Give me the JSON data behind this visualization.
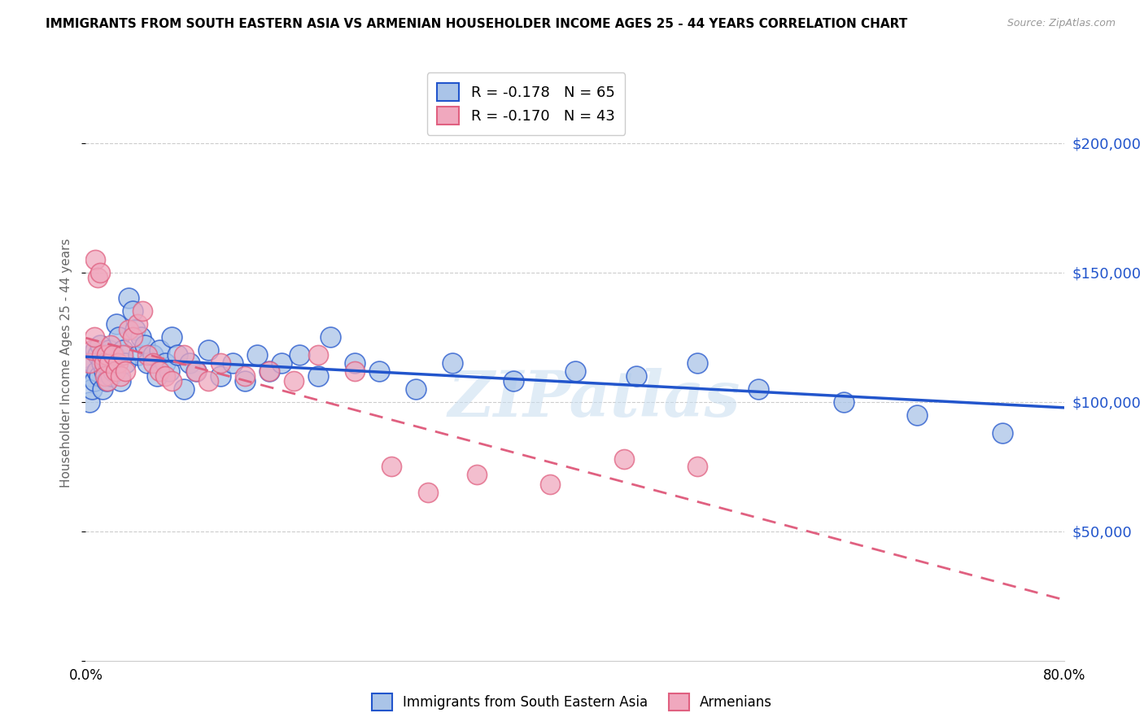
{
  "title": "IMMIGRANTS FROM SOUTH EASTERN ASIA VS ARMENIAN HOUSEHOLDER INCOME AGES 25 - 44 YEARS CORRELATION CHART",
  "source": "Source: ZipAtlas.com",
  "ylabel": "Householder Income Ages 25 - 44 years",
  "legend1_color": "#aac4e8",
  "legend2_color": "#f0a8be",
  "trend1_color": "#2255cc",
  "trend2_color": "#e06080",
  "watermark": "ZIPatlas",
  "ytick_values": [
    50000,
    100000,
    150000,
    200000
  ],
  "ymin": 0,
  "ymax": 230000,
  "xmin": 0.0,
  "xmax": 0.8,
  "blue_x": [
    0.003,
    0.004,
    0.005,
    0.006,
    0.007,
    0.008,
    0.009,
    0.01,
    0.011,
    0.012,
    0.013,
    0.014,
    0.015,
    0.016,
    0.017,
    0.018,
    0.019,
    0.02,
    0.021,
    0.022,
    0.023,
    0.025,
    0.027,
    0.028,
    0.03,
    0.032,
    0.035,
    0.038,
    0.04,
    0.043,
    0.045,
    0.048,
    0.05,
    0.055,
    0.058,
    0.06,
    0.065,
    0.068,
    0.07,
    0.075,
    0.08,
    0.085,
    0.09,
    0.1,
    0.11,
    0.12,
    0.13,
    0.14,
    0.15,
    0.16,
    0.175,
    0.19,
    0.2,
    0.22,
    0.24,
    0.27,
    0.3,
    0.35,
    0.4,
    0.45,
    0.5,
    0.55,
    0.62,
    0.68,
    0.75
  ],
  "blue_y": [
    100000,
    110000,
    105000,
    115000,
    108000,
    120000,
    112000,
    118000,
    110000,
    122000,
    115000,
    105000,
    112000,
    118000,
    108000,
    115000,
    120000,
    110000,
    115000,
    112000,
    118000,
    130000,
    125000,
    108000,
    120000,
    115000,
    140000,
    135000,
    128000,
    118000,
    125000,
    122000,
    115000,
    118000,
    110000,
    120000,
    115000,
    112000,
    125000,
    118000,
    105000,
    115000,
    112000,
    120000,
    110000,
    115000,
    108000,
    118000,
    112000,
    115000,
    118000,
    110000,
    125000,
    115000,
    112000,
    105000,
    115000,
    108000,
    112000,
    110000,
    115000,
    105000,
    100000,
    95000,
    88000
  ],
  "pink_x": [
    0.003,
    0.005,
    0.007,
    0.008,
    0.01,
    0.012,
    0.013,
    0.015,
    0.016,
    0.017,
    0.018,
    0.019,
    0.02,
    0.022,
    0.024,
    0.026,
    0.028,
    0.03,
    0.032,
    0.035,
    0.038,
    0.042,
    0.046,
    0.05,
    0.055,
    0.06,
    0.065,
    0.07,
    0.08,
    0.09,
    0.1,
    0.11,
    0.13,
    0.15,
    0.17,
    0.19,
    0.22,
    0.25,
    0.28,
    0.32,
    0.38,
    0.44,
    0.5
  ],
  "pink_y": [
    115000,
    120000,
    125000,
    155000,
    148000,
    150000,
    118000,
    115000,
    110000,
    118000,
    108000,
    115000,
    122000,
    118000,
    112000,
    115000,
    110000,
    118000,
    112000,
    128000,
    125000,
    130000,
    135000,
    118000,
    115000,
    112000,
    110000,
    108000,
    118000,
    112000,
    108000,
    115000,
    110000,
    112000,
    108000,
    118000,
    112000,
    75000,
    65000,
    72000,
    68000,
    78000,
    75000
  ],
  "blue_R": -0.178,
  "pink_R": -0.17,
  "blue_N": 65,
  "pink_N": 43
}
